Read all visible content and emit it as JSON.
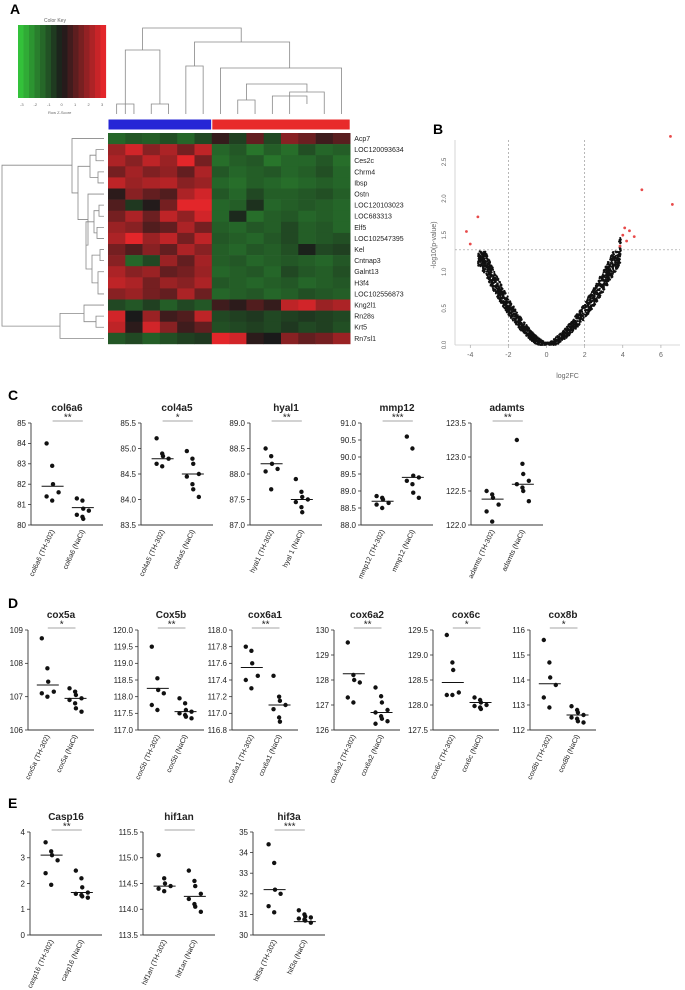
{
  "panel_labels": {
    "a": "A",
    "b": "B",
    "c": "C",
    "d": "D",
    "e": "E"
  },
  "color_key": {
    "title": "Color Key",
    "axis_label": "Row Z-Score",
    "tick_labels": [
      "-3",
      "-2",
      "-1",
      "0",
      "1",
      "2",
      "3"
    ]
  },
  "colors": {
    "high": "#e3262a",
    "low": "#33c13a",
    "mid": "#1a1a1a",
    "group_a": "#2626d6",
    "group_b": "#e82a2a",
    "highlight": "#e84a4a",
    "dot": "#111111",
    "axis": "#333333",
    "line": "#888888"
  },
  "chart_data": [
    {
      "type": "heatmap",
      "panel": "A",
      "rows": [
        "Acp7",
        "LOC120093634",
        "Ces2c",
        "Chrm4",
        "Ibsp",
        "Ostn",
        "LOC120103023",
        "LOC683313",
        "Elf5",
        "LOC102547395",
        "Kel",
        "Cntnap3",
        "Galnt13",
        "H3f4",
        "LOC102556873",
        "Kng2l1",
        "Rn28s",
        "Krt5",
        "Rn7sl1"
      ],
      "n_columns": 14,
      "column_groups": [
        {
          "color": "#2626d6",
          "count": 6
        },
        {
          "color": "#e82a2a",
          "count": 8
        }
      ],
      "values": [
        [
          -1.0,
          -0.8,
          -0.9,
          -0.7,
          -1.0,
          -0.6,
          0.3,
          -0.5,
          0.8,
          -0.6,
          1.2,
          0.9,
          0.4,
          0.7
        ],
        [
          1.4,
          2.0,
          1.2,
          1.6,
          1.0,
          1.8,
          -1.0,
          -0.8,
          -1.2,
          -0.9,
          -1.1,
          -0.7,
          -1.0,
          -0.9
        ],
        [
          1.6,
          1.2,
          1.8,
          1.4,
          2.2,
          1.0,
          -1.1,
          -0.9,
          -0.8,
          -1.2,
          -1.0,
          -1.0,
          -0.8,
          -1.1
        ],
        [
          1.0,
          1.5,
          1.1,
          1.3,
          0.8,
          1.6,
          -0.8,
          -1.0,
          -0.9,
          -0.8,
          -1.0,
          -0.9,
          -0.7,
          -1.0
        ],
        [
          1.8,
          1.4,
          1.6,
          1.7,
          1.2,
          1.4,
          -1.0,
          -1.1,
          -0.9,
          -1.0,
          -1.1,
          -1.0,
          -0.9,
          -1.0
        ],
        [
          0.2,
          1.2,
          0.8,
          0.6,
          1.6,
          2.0,
          -0.8,
          -1.0,
          -0.6,
          -0.9,
          -0.9,
          -0.8,
          -0.7,
          -0.9
        ],
        [
          0.6,
          -0.4,
          0.1,
          1.0,
          2.2,
          2.4,
          -1.0,
          -0.9,
          -0.3,
          -1.0,
          -0.9,
          -0.8,
          -0.9,
          -1.0
        ],
        [
          1.0,
          1.6,
          0.9,
          1.8,
          1.3,
          2.0,
          -1.0,
          -0.2,
          -1.1,
          -0.9,
          -0.8,
          -1.0,
          -0.9,
          -1.0
        ],
        [
          1.4,
          1.2,
          0.6,
          0.8,
          1.6,
          1.0,
          -0.9,
          -1.0,
          -0.8,
          -0.9,
          -0.6,
          -0.9,
          -0.8,
          -1.0
        ],
        [
          1.6,
          2.2,
          1.4,
          1.8,
          1.0,
          1.8,
          -0.8,
          -0.9,
          -1.0,
          -0.8,
          -0.6,
          -0.9,
          -0.8,
          -0.7
        ],
        [
          1.0,
          0.6,
          1.2,
          0.8,
          1.6,
          1.2,
          -0.9,
          -1.0,
          -0.8,
          -0.9,
          -0.7,
          -0.1,
          -0.6,
          -0.5
        ],
        [
          1.2,
          -1.0,
          -0.6,
          1.4,
          0.8,
          1.5,
          -0.9,
          -0.8,
          -1.0,
          -0.9,
          -0.8,
          -0.9,
          -1.0,
          -0.8
        ],
        [
          1.6,
          1.2,
          1.4,
          0.8,
          1.0,
          1.4,
          -1.0,
          -0.9,
          -0.8,
          -1.0,
          -0.6,
          -0.8,
          -0.9,
          -0.7
        ],
        [
          1.8,
          1.6,
          1.0,
          1.4,
          1.2,
          1.6,
          -0.8,
          -0.9,
          -1.0,
          -0.9,
          -0.8,
          -1.0,
          -0.9,
          -0.8
        ],
        [
          1.2,
          1.4,
          1.0,
          0.8,
          1.6,
          0.9,
          -1.0,
          -0.9,
          -0.8,
          -1.0,
          -0.9,
          -0.7,
          -0.8,
          -0.9
        ],
        [
          -0.6,
          -0.8,
          -0.5,
          -0.9,
          -0.6,
          -0.8,
          0.4,
          0.2,
          0.6,
          0.3,
          1.8,
          2.0,
          1.4,
          1.6
        ],
        [
          2.0,
          0.0,
          1.4,
          0.4,
          0.6,
          1.8,
          -0.6,
          -0.5,
          -0.4,
          -0.6,
          -0.5,
          -0.4,
          -0.5,
          -0.6
        ],
        [
          1.8,
          0.2,
          2.0,
          1.2,
          0.4,
          0.8,
          -0.7,
          -0.6,
          -0.5,
          -0.6,
          -0.4,
          -0.6,
          -0.5,
          -0.7
        ],
        [
          -0.8,
          -0.6,
          -0.9,
          -0.7,
          -0.5,
          -0.4,
          2.2,
          2.0,
          0.2,
          0.0,
          1.2,
          0.8,
          1.0,
          1.4
        ]
      ]
    },
    {
      "type": "scatter",
      "panel": "B",
      "xlabel": "log2FC",
      "ylabel": "-log10(p-value)",
      "xlim": [
        -4.8,
        7.0
      ],
      "ylim": [
        0.0,
        2.8
      ],
      "xticks": [
        -4,
        -2,
        0,
        2,
        4,
        6
      ],
      "yticks": [
        0.0,
        0.5,
        1.0,
        1.5,
        2.0,
        2.5
      ],
      "vlines": [
        -2,
        2
      ],
      "hline": 1.3,
      "significant_points": [
        [
          -4.2,
          1.55
        ],
        [
          -4.0,
          1.38
        ],
        [
          -3.6,
          1.75
        ],
        [
          4.0,
          1.5
        ],
        [
          4.1,
          1.6
        ],
        [
          4.2,
          1.42
        ],
        [
          4.35,
          1.56
        ],
        [
          3.85,
          1.35
        ],
        [
          4.6,
          1.48
        ],
        [
          5.0,
          2.12
        ],
        [
          6.5,
          2.85
        ],
        [
          6.6,
          1.92
        ]
      ]
    },
    {
      "type": "scatter",
      "panel": "C",
      "plots": [
        {
          "title": "col6a6",
          "ylim": [
            80,
            85
          ],
          "yticks": [
            "80",
            "81",
            "82",
            "83",
            "84",
            "85"
          ],
          "categories": [
            "col6a6 (TH-302)",
            "col6a6 (NaCl)"
          ],
          "significance": "**",
          "groups": [
            [
              84.0,
              82.9,
              82.0,
              81.6,
              81.4,
              81.2
            ],
            [
              81.3,
              81.2,
              80.8,
              80.7,
              80.5,
              80.4,
              80.3
            ]
          ],
          "means": [
            81.9,
            80.85
          ]
        },
        {
          "title": "col4a5",
          "ylim": [
            83.5,
            85.5
          ],
          "yticks": [
            "83.5",
            "84.0",
            "84.5",
            "85.0",
            "85.5"
          ],
          "categories": [
            "col4a5 (TH-302)",
            "col4a5 (NaCl)"
          ],
          "significance": "*",
          "groups": [
            [
              85.2,
              84.9,
              84.85,
              84.8,
              84.7,
              84.65
            ],
            [
              84.95,
              84.8,
              84.7,
              84.5,
              84.45,
              84.3,
              84.2,
              84.05
            ]
          ],
          "means": [
            84.8,
            84.5
          ]
        },
        {
          "title": "hyal1",
          "ylim": [
            87.0,
            89.0
          ],
          "yticks": [
            "87.0",
            "87.5",
            "88.0",
            "88.5",
            "89.0"
          ],
          "categories": [
            "hyal1 (TH-302)",
            "hyal 1 (NaCl)"
          ],
          "significance": "**",
          "groups": [
            [
              88.5,
              88.35,
              88.2,
              88.1,
              88.05,
              87.7
            ],
            [
              87.9,
              87.65,
              87.55,
              87.5,
              87.45,
              87.35,
              87.25
            ]
          ],
          "means": [
            88.2,
            87.5
          ]
        },
        {
          "title": "mmp12",
          "ylim": [
            88.0,
            91.0
          ],
          "yticks": [
            "88.0",
            "88.5",
            "89.0",
            "89.5",
            "90.0",
            "90.5",
            "91.0"
          ],
          "categories": [
            "mmp12 (TH-302)",
            "mmp12 (NaCl)"
          ],
          "significance": "***",
          "groups": [
            [
              88.85,
              88.8,
              88.75,
              88.65,
              88.6,
              88.5
            ],
            [
              90.6,
              90.25,
              89.45,
              89.4,
              89.3,
              89.2,
              88.95,
              88.8
            ]
          ],
          "means": [
            88.7,
            89.4
          ]
        },
        {
          "title": "adamts",
          "ylim": [
            122.0,
            123.5
          ],
          "yticks": [
            "122.0",
            "122.5",
            "123.0",
            "123.5"
          ],
          "categories": [
            "adamts (TH-302)",
            "adamts (NaCl)"
          ],
          "significance": "**",
          "groups": [
            [
              122.5,
              122.45,
              122.4,
              122.3,
              122.2,
              122.05
            ],
            [
              123.25,
              122.9,
              122.75,
              122.65,
              122.6,
              122.55,
              122.5,
              122.35
            ]
          ],
          "means": [
            122.38,
            122.6
          ]
        }
      ]
    },
    {
      "type": "scatter",
      "panel": "D",
      "plots": [
        {
          "title": "cox5a",
          "ylim": [
            106,
            109
          ],
          "yticks": [
            "106",
            "107",
            "108",
            "109"
          ],
          "categories": [
            "cox5a (TH-302)",
            "cox5a (NaCl)"
          ],
          "significance": "*",
          "groups": [
            [
              108.75,
              107.85,
              107.45,
              107.15,
              107.1,
              107.0
            ],
            [
              107.25,
              107.15,
              107.05,
              106.95,
              106.9,
              106.8,
              106.65,
              106.55
            ]
          ],
          "means": [
            107.35,
            106.95
          ]
        },
        {
          "title": "Cox5b",
          "ylim": [
            117.0,
            120.0
          ],
          "yticks": [
            "117.0",
            "117.5",
            "118.0",
            "118.5",
            "119.0",
            "119.5",
            "120.0"
          ],
          "categories": [
            "cox5b (TH-302)",
            "cox5b (NaCl)"
          ],
          "significance": "**",
          "groups": [
            [
              119.5,
              118.55,
              118.2,
              118.1,
              117.75,
              117.6
            ],
            [
              117.95,
              117.8,
              117.6,
              117.55,
              117.5,
              117.45,
              117.4,
              117.35
            ]
          ],
          "means": [
            118.25,
            117.55
          ]
        },
        {
          "title": "cox6a1",
          "ylim": [
            116.8,
            118.0
          ],
          "yticks": [
            "116.8",
            "117.0",
            "117.2",
            "117.4",
            "117.6",
            "117.8",
            "118.0"
          ],
          "categories": [
            "cox6a1 (TH-302)",
            "cox6a1 (NaCl)"
          ],
          "significance": "**",
          "groups": [
            [
              117.8,
              117.75,
              117.6,
              117.45,
              117.4,
              117.3
            ],
            [
              117.45,
              117.2,
              117.15,
              117.1,
              117.05,
              116.95,
              116.9
            ]
          ],
          "means": [
            117.55,
            117.1
          ]
        },
        {
          "title": "cox6a2",
          "ylim": [
            126,
            130
          ],
          "yticks": [
            "126",
            "127",
            "128",
            "129",
            "130"
          ],
          "categories": [
            "cox6a2 (TH-302)",
            "cox6a2 (NaCl)"
          ],
          "significance": "**",
          "groups": [
            [
              129.5,
              128.2,
              128.0,
              127.9,
              127.3,
              127.1
            ],
            [
              127.7,
              127.35,
              127.1,
              126.8,
              126.7,
              126.55,
              126.45,
              126.35,
              126.25
            ]
          ],
          "means": [
            128.25,
            126.7
          ]
        },
        {
          "title": "cox6c",
          "ylim": [
            127.5,
            129.5
          ],
          "yticks": [
            "127.5",
            "128.0",
            "128.5",
            "129.0",
            "129.5"
          ],
          "categories": [
            "cox6c (TH-302)",
            "cox6c (NaCl)"
          ],
          "significance": "*",
          "groups": [
            [
              129.4,
              128.85,
              128.7,
              128.25,
              128.2,
              128.2
            ],
            [
              128.15,
              128.1,
              128.05,
              128.0,
              127.98,
              127.95,
              127.92
            ]
          ],
          "means": [
            128.45,
            128.05
          ]
        },
        {
          "title": "cox8b",
          "ylim": [
            112,
            116
          ],
          "yticks": [
            "112",
            "113",
            "114",
            "115",
            "116"
          ],
          "categories": [
            "cox8b (TH-302)",
            "cox8b (NaCl)"
          ],
          "significance": "*",
          "groups": [
            [
              115.6,
              114.7,
              114.1,
              113.8,
              113.3,
              112.9
            ],
            [
              112.95,
              112.8,
              112.7,
              112.6,
              112.5,
              112.45,
              112.35,
              112.3
            ]
          ],
          "means": [
            113.85,
            112.6
          ]
        }
      ]
    },
    {
      "type": "scatter",
      "panel": "E",
      "plots": [
        {
          "title": "Casp16",
          "ylim": [
            0,
            4
          ],
          "yticks": [
            "0",
            "1",
            "2",
            "3",
            "4"
          ],
          "categories": [
            "casp16 (TH-302)",
            "casp16 (NaCl)"
          ],
          "significance": "**",
          "groups": [
            [
              3.6,
              3.25,
              3.1,
              2.9,
              2.4,
              1.95
            ],
            [
              2.5,
              2.2,
              1.85,
              1.65,
              1.6,
              1.55,
              1.5,
              1.45
            ]
          ],
          "means": [
            3.1,
            1.65
          ]
        },
        {
          "title": "hif1an",
          "ylim": [
            113.5,
            115.5
          ],
          "yticks": [
            "113.5",
            "114.0",
            "114.5",
            "115.0",
            "115.5"
          ],
          "categories": [
            "hif1an (TH-302)",
            "hif1an (NaCl)"
          ],
          "significance": "",
          "groups": [
            [
              115.05,
              114.6,
              114.5,
              114.45,
              114.4,
              114.35
            ],
            [
              114.75,
              114.55,
              114.45,
              114.3,
              114.2,
              114.1,
              114.05,
              113.95
            ]
          ],
          "means": [
            114.45,
            114.25
          ]
        },
        {
          "title": "hif3a",
          "ylim": [
            30,
            35
          ],
          "yticks": [
            "30",
            "31",
            "32",
            "33",
            "34",
            "35"
          ],
          "categories": [
            "hif3a (TH-302)",
            "hif3a (NaCl)"
          ],
          "significance": "***",
          "groups": [
            [
              34.4,
              33.5,
              32.2,
              32.0,
              31.4,
              31.1
            ],
            [
              31.2,
              31.0,
              30.9,
              30.85,
              30.8,
              30.75,
              30.7,
              30.6
            ]
          ],
          "means": [
            32.2,
            30.65
          ]
        }
      ]
    }
  ]
}
